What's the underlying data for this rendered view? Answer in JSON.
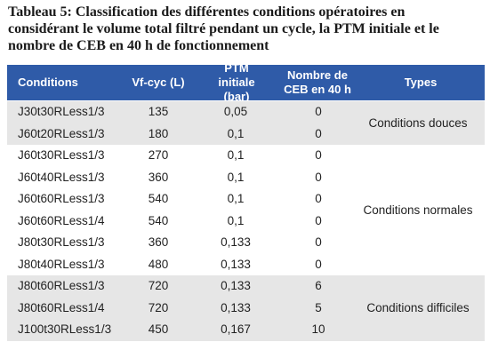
{
  "title": {
    "lines": [
      "Tableau 5: Classification des différentes conditions opératoires en",
      "considérant le volume total filtré pendant un cycle, la PTM initiale et le",
      "nombre de CEB en 40 h de fonctionnement"
    ]
  },
  "table": {
    "header": [
      "Conditions",
      "Vf-cyc (L)",
      "PTM initiale (bar)",
      "Nombre de CEB en 40 h",
      "Types"
    ],
    "groups": [
      {
        "type": "Conditions douces",
        "rows": [
          [
            "J30t30RLess1/3",
            135,
            "0,05",
            0
          ],
          [
            "J60t20RLess1/3",
            180,
            "0,1",
            0
          ]
        ]
      },
      {
        "type": "Conditions normales",
        "rows": [
          [
            "J60t30RLess1/3",
            270,
            "0,1",
            0
          ],
          [
            "J60t40RLess1/3",
            360,
            "0,1",
            0
          ],
          [
            "J60t60RLess1/3",
            540,
            "0,1",
            0
          ],
          [
            "J60t60RLess1/4",
            540,
            "0,1",
            0
          ],
          [
            "J80t30RLess1/3",
            360,
            "0,133",
            0
          ],
          [
            "J80t40RLess1/3",
            480,
            "0,133",
            0
          ]
        ]
      },
      {
        "type": "Conditions difficiles",
        "rows": [
          [
            "J80t60RLess1/3",
            720,
            "0,133",
            6
          ],
          [
            "J80t60RLess1/4",
            720,
            "0,133",
            5
          ],
          [
            "J100t30RLess1/3",
            450,
            "0,167",
            10
          ]
        ]
      }
    ]
  }
}
